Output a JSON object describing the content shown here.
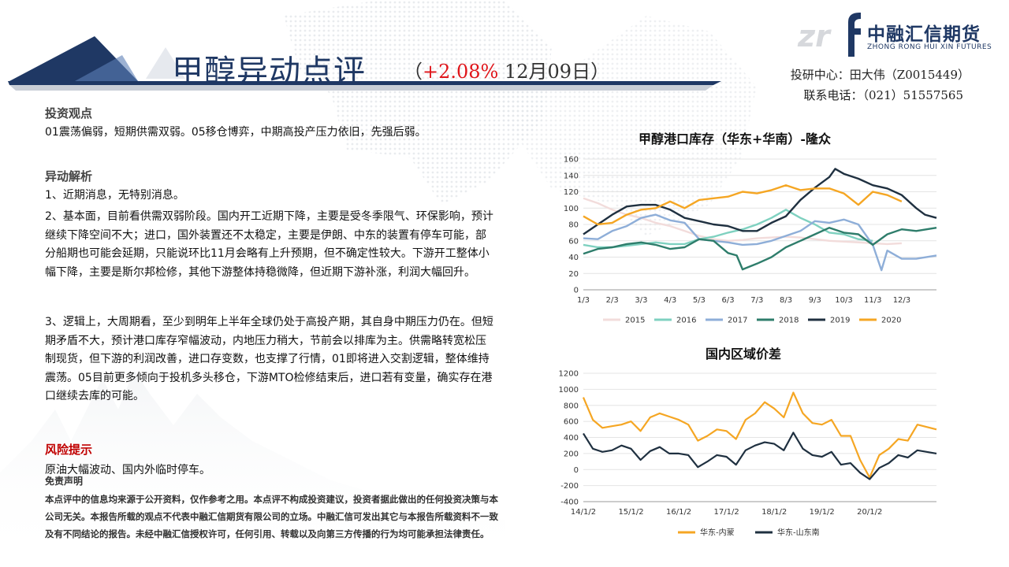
{
  "header": {
    "title": "甲醇异动点评",
    "change": "+2.08%",
    "sub_open": "（",
    "date": " 12月09日）",
    "logo_zr": "zr",
    "logo_cn": "中融汇信期货",
    "logo_en": "ZHONG RONG HUI XIN FUTURES",
    "analyst": "投研中心：田大伟（Z0015449）",
    "phone": "联系电话：（021）51557565"
  },
  "sections": {
    "view_head": "投资观点",
    "view_text": "01震荡偏弱，短期供需双弱。05移仓博弈，中期高投产压力依旧，先强后弱。",
    "analysis_head": "异动解析",
    "analysis_1": "1、近期消息，无特别消息。",
    "analysis_2": "2、基本面，目前看供需双弱阶段。国内开工近期下降，主要是受冬季限气、环保影响，预计继续下降空间不大；进口，国外装置还不太稳定，主要是伊朗、中东的装置有停车可能，部分船期也可能会延期，只能说环比11月会略有上升预期，但不确定性较大。下游开工整体小幅下降，主要是斯尔邦检修，其他下游整体持稳微降，但近期下游补涨，利润大幅回升。",
    "analysis_3": "3、逻辑上，大周期看，至少到明年上半年全球仍处于高投产期，其自身中期压力仍在。但短期矛盾不大，预计港口库存窄幅波动，内地压力稍大，节前会以排库为主。供需略转宽松压制现货，但下游的利润改善，进口存变数，也支撑了行情，01即将进入交割逻辑，整体维持震荡。05目前更多倾向于投机多头移仓，下游MTO检修结束后，进口若有变量，确实存在港口继续去库的可能。",
    "risk_head": "风险提示",
    "risk_text": "原油大幅波动、国内外临时停车。",
    "disclaimer_head": "免责声明",
    "disclaimer_text": "本点评中的信息均来源于公开资料，仅作参考之用。本点评不构成投资建议，投资者据此做出的任何投资决策与本公司无关。本报告所载的观点不代表中融汇信期货有限公司的立场。中融汇信可发出其它与本报告所载资料不一致及有不同结论的报告。未经中融汇信授权许可，任何引用、转载以及向第三方传播的行为均可能承担法律责任。"
  },
  "chart_data": [
    {
      "type": "line",
      "title": "甲醇港口库存（华东+华南）-隆众",
      "xlabel": "",
      "ylabel": "",
      "ylim": [
        0,
        160
      ],
      "yticks": [
        0,
        20,
        40,
        60,
        80,
        100,
        120,
        140,
        160
      ],
      "x_ticks": [
        "1/3",
        "2/3",
        "3/3",
        "4/3",
        "5/3",
        "6/3",
        "7/3",
        "8/3",
        "9/3",
        "10/3",
        "11/3",
        "12/3"
      ],
      "x_tick_pos": [
        1,
        2,
        3,
        4,
        5,
        6,
        7,
        8,
        9,
        10,
        11,
        12
      ],
      "xlim": [
        1,
        13.2
      ],
      "legend": "bottom",
      "series": [
        {
          "name": "2015",
          "color": "#f2dcdb",
          "x": [
            1.0,
            1.5,
            2.0,
            2.5,
            3.0,
            3.5,
            4.0,
            4.5,
            5.0,
            5.5,
            6.0,
            6.5,
            7.0,
            7.5,
            8.0,
            8.5,
            9.0,
            9.5,
            10.0,
            10.5,
            11.0,
            11.5,
            12.0
          ],
          "values": [
            112,
            106,
            98,
            92,
            88,
            82,
            78,
            72,
            66,
            62,
            60,
            61,
            63,
            64,
            65,
            64,
            62,
            60,
            59,
            58,
            57,
            56,
            57
          ]
        },
        {
          "name": "2016",
          "color": "#7fd1c0",
          "x": [
            1.0,
            1.5,
            2.0,
            2.5,
            3.0,
            3.5,
            4.0,
            4.5,
            5.0,
            5.5,
            6.0,
            6.5,
            7.0,
            7.5,
            8.0,
            8.5,
            9.0,
            9.5,
            10.0,
            10.5,
            11.0
          ],
          "values": [
            55,
            52,
            52,
            54,
            56,
            58,
            56,
            56,
            62,
            65,
            70,
            74,
            80,
            88,
            98,
            88,
            80,
            70,
            68,
            62,
            60
          ]
        },
        {
          "name": "2017",
          "color": "#8eaed8",
          "x": [
            1.0,
            1.5,
            2.0,
            2.5,
            3.0,
            3.5,
            4.0,
            4.5,
            5.0,
            5.5,
            6.0,
            6.5,
            7.0,
            7.5,
            8.0,
            8.5,
            9.0,
            9.5,
            10.0,
            10.5,
            11.0,
            11.3,
            11.5,
            12.0,
            12.5,
            13.2
          ],
          "values": [
            63,
            62,
            72,
            78,
            88,
            92,
            85,
            82,
            62,
            60,
            58,
            55,
            56,
            60,
            66,
            72,
            84,
            82,
            86,
            80,
            55,
            24,
            48,
            38,
            38,
            42
          ]
        },
        {
          "name": "2018",
          "color": "#2e7d6b",
          "x": [
            1.0,
            1.5,
            2.0,
            2.5,
            3.0,
            3.5,
            4.0,
            4.5,
            5.0,
            5.5,
            6.0,
            6.3,
            6.5,
            7.0,
            7.5,
            8.0,
            8.5,
            9.0,
            9.5,
            10.0,
            10.5,
            11.0,
            11.5,
            12.0,
            12.5,
            13.2
          ],
          "values": [
            44,
            50,
            52,
            56,
            58,
            55,
            50,
            52,
            62,
            60,
            45,
            42,
            25,
            32,
            40,
            52,
            60,
            68,
            76,
            70,
            68,
            55,
            68,
            74,
            72,
            76
          ]
        },
        {
          "name": "2019",
          "color": "#1f3040",
          "x": [
            1.0,
            1.5,
            2.0,
            2.5,
            3.0,
            3.5,
            4.0,
            4.5,
            5.0,
            5.5,
            6.0,
            6.5,
            7.0,
            7.5,
            8.0,
            8.5,
            9.0,
            9.5,
            9.7,
            10.0,
            10.5,
            11.0,
            11.5,
            12.0,
            12.5,
            12.8,
            13.2
          ],
          "values": [
            68,
            80,
            92,
            102,
            104,
            104,
            98,
            88,
            84,
            80,
            78,
            72,
            72,
            82,
            90,
            110,
            125,
            138,
            148,
            142,
            136,
            128,
            124,
            116,
            100,
            92,
            88
          ]
        },
        {
          "name": "2020",
          "color": "#f5a623",
          "x": [
            1.0,
            1.5,
            2.0,
            2.5,
            3.0,
            3.5,
            4.0,
            4.5,
            5.0,
            5.5,
            6.0,
            6.5,
            7.0,
            7.5,
            8.0,
            8.5,
            9.0,
            9.5,
            10.0,
            10.5,
            11.0,
            11.5,
            12.0
          ],
          "values": [
            90,
            80,
            82,
            92,
            98,
            100,
            108,
            100,
            110,
            112,
            114,
            120,
            118,
            122,
            128,
            122,
            124,
            124,
            118,
            104,
            120,
            116,
            108
          ]
        }
      ]
    },
    {
      "type": "line",
      "title": "国内区域价差",
      "xlabel": "",
      "ylabel": "",
      "ylim": [
        -400,
        1200
      ],
      "yticks": [
        -400,
        -200,
        0,
        200,
        400,
        600,
        800,
        1000,
        1200
      ],
      "x_ticks": [
        "14/1/2",
        "15/1/2",
        "16/1/2",
        "17/1/2",
        "18/1/2",
        "19/1/2",
        "20/1/2"
      ],
      "x_tick_pos": [
        0,
        1,
        2,
        3,
        4,
        5,
        6
      ],
      "xlim": [
        0,
        7.4
      ],
      "legend": "bottom",
      "series": [
        {
          "name": "华东-内蒙",
          "color": "#f5a623",
          "x": [
            0.0,
            0.2,
            0.4,
            0.6,
            0.8,
            1.0,
            1.2,
            1.4,
            1.6,
            1.8,
            2.0,
            2.2,
            2.4,
            2.6,
            2.8,
            3.0,
            3.2,
            3.4,
            3.6,
            3.8,
            4.0,
            4.2,
            4.4,
            4.6,
            4.8,
            5.0,
            5.2,
            5.4,
            5.6,
            5.8,
            6.0,
            6.2,
            6.4,
            6.6,
            6.8,
            7.0,
            7.4
          ],
          "values": [
            900,
            620,
            520,
            540,
            560,
            600,
            480,
            650,
            700,
            660,
            620,
            560,
            360,
            420,
            500,
            480,
            380,
            620,
            700,
            840,
            760,
            650,
            960,
            700,
            580,
            560,
            620,
            420,
            420,
            120,
            -100,
            180,
            260,
            380,
            360,
            560,
            500
          ]
        },
        {
          "name": "华东-山东南",
          "color": "#1f3040",
          "x": [
            0.0,
            0.2,
            0.4,
            0.6,
            0.8,
            1.0,
            1.2,
            1.4,
            1.6,
            1.8,
            2.0,
            2.2,
            2.4,
            2.6,
            2.8,
            3.0,
            3.2,
            3.4,
            3.6,
            3.8,
            4.0,
            4.2,
            4.4,
            4.6,
            4.8,
            5.0,
            5.2,
            5.4,
            5.6,
            5.8,
            6.0,
            6.2,
            6.4,
            6.6,
            6.8,
            7.0,
            7.4
          ],
          "values": [
            450,
            260,
            220,
            240,
            300,
            260,
            120,
            230,
            280,
            200,
            200,
            180,
            30,
            100,
            180,
            160,
            60,
            240,
            300,
            340,
            320,
            240,
            460,
            260,
            180,
            160,
            220,
            60,
            80,
            -40,
            -120,
            20,
            80,
            180,
            150,
            240,
            200
          ]
        }
      ]
    }
  ]
}
